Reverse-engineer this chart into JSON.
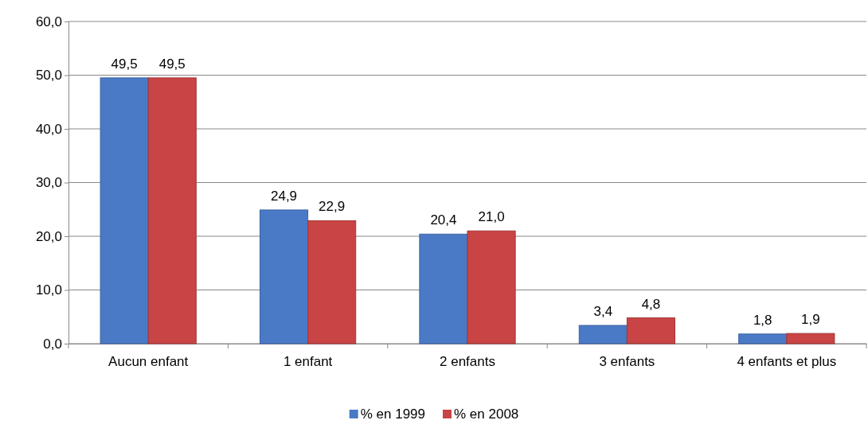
{
  "chart_data": {
    "type": "bar",
    "categories": [
      "Aucun enfant",
      "1 enfant",
      "2 enfants",
      "3 enfants",
      "4 enfants et plus"
    ],
    "series": [
      {
        "name": "% en 1999",
        "color": "#4a7ac6",
        "values": [
          49.5,
          24.9,
          20.4,
          3.4,
          1.8
        ],
        "value_labels": [
          "49,5",
          "24,9",
          "20,4",
          "3,4",
          "1,8"
        ]
      },
      {
        "name": "% en 2008",
        "color": "#c94444",
        "values": [
          49.5,
          22.9,
          21.0,
          4.8,
          1.9
        ],
        "value_labels": [
          "49,5",
          "22,9",
          "21,0",
          "4,8",
          "1,9"
        ]
      }
    ],
    "ylim": [
      0,
      60
    ],
    "yticks": [
      {
        "value": 0,
        "label": "0,0"
      },
      {
        "value": 10,
        "label": "10,0"
      },
      {
        "value": 20,
        "label": "20,0"
      },
      {
        "value": 30,
        "label": "30,0"
      },
      {
        "value": 40,
        "label": "40,0"
      },
      {
        "value": 50,
        "label": "50,0"
      },
      {
        "value": 60,
        "label": "60,0"
      }
    ],
    "grid": "y",
    "legend": "bottom"
  }
}
